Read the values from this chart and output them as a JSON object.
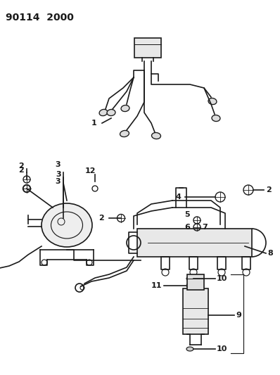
{
  "title": "90114  2000",
  "bg_color": "#ffffff",
  "line_color": "#1a1a1a",
  "title_fontsize": 10,
  "label_fontsize": 7.5
}
